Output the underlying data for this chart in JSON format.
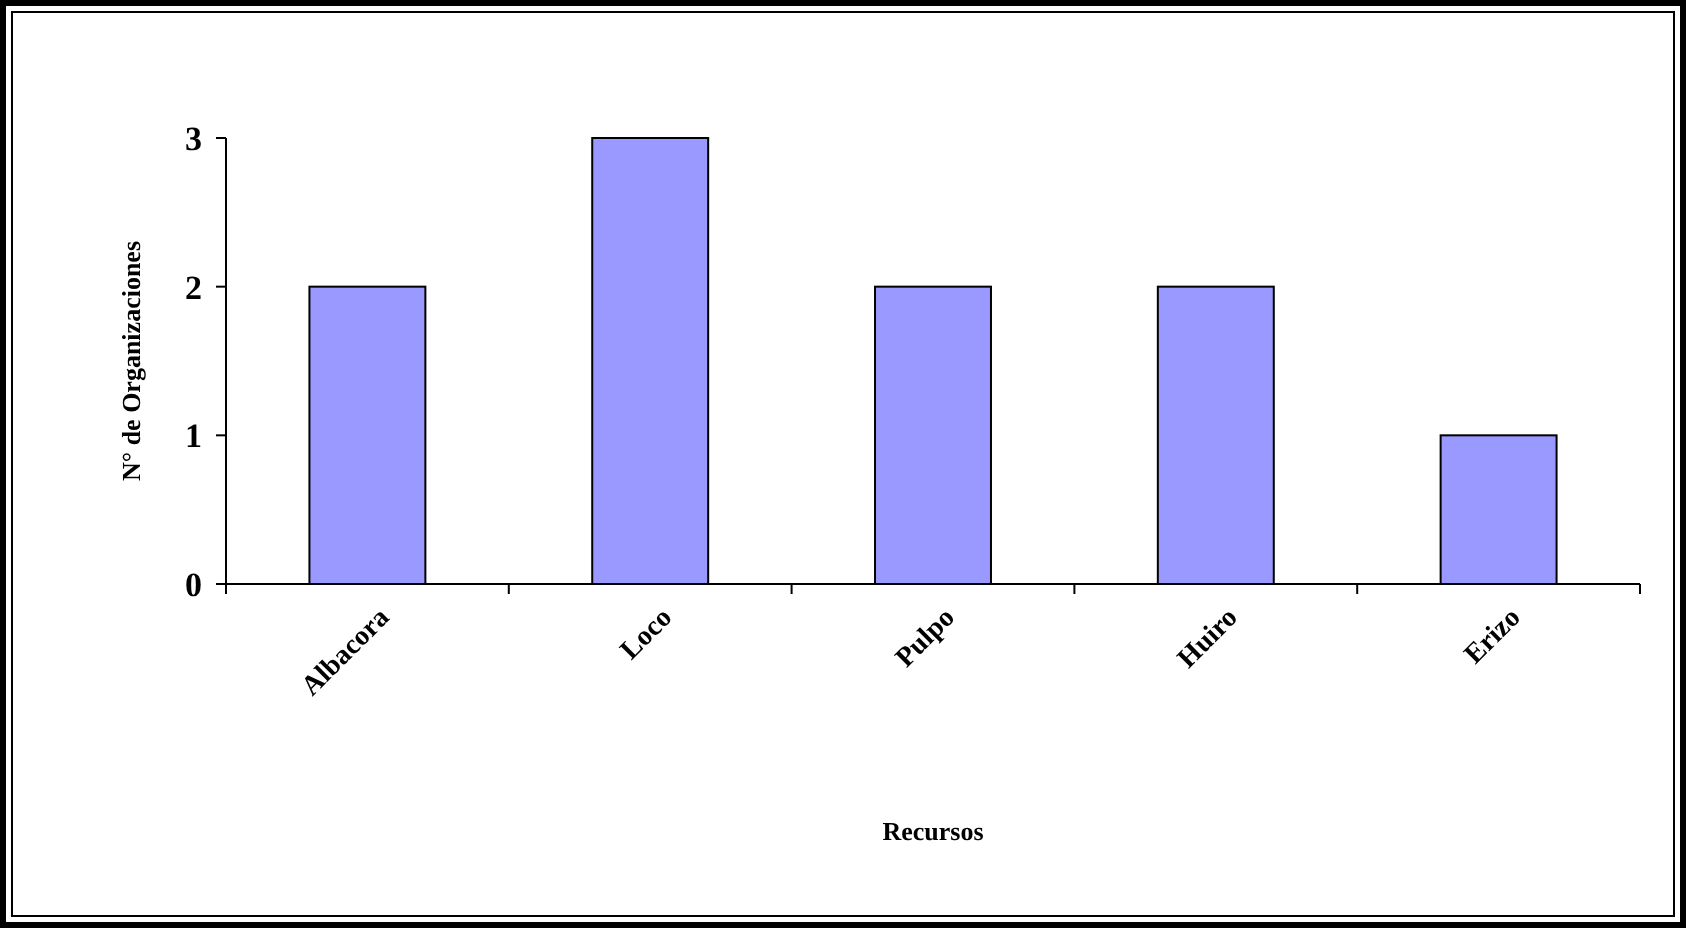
{
  "chart_data": {
    "type": "bar",
    "xlabel": "Recursos",
    "ylabel": "N° de Organizaciones",
    "categories": [
      "Albacora",
      "Loco",
      "Pulpo",
      "Huiro",
      "Erizo"
    ],
    "values": [
      2,
      3,
      2,
      2,
      1
    ],
    "color": "#9999ff",
    "ylim": [
      0,
      3
    ],
    "yticks": [
      0,
      1,
      2,
      3
    ],
    "grid": false
  }
}
